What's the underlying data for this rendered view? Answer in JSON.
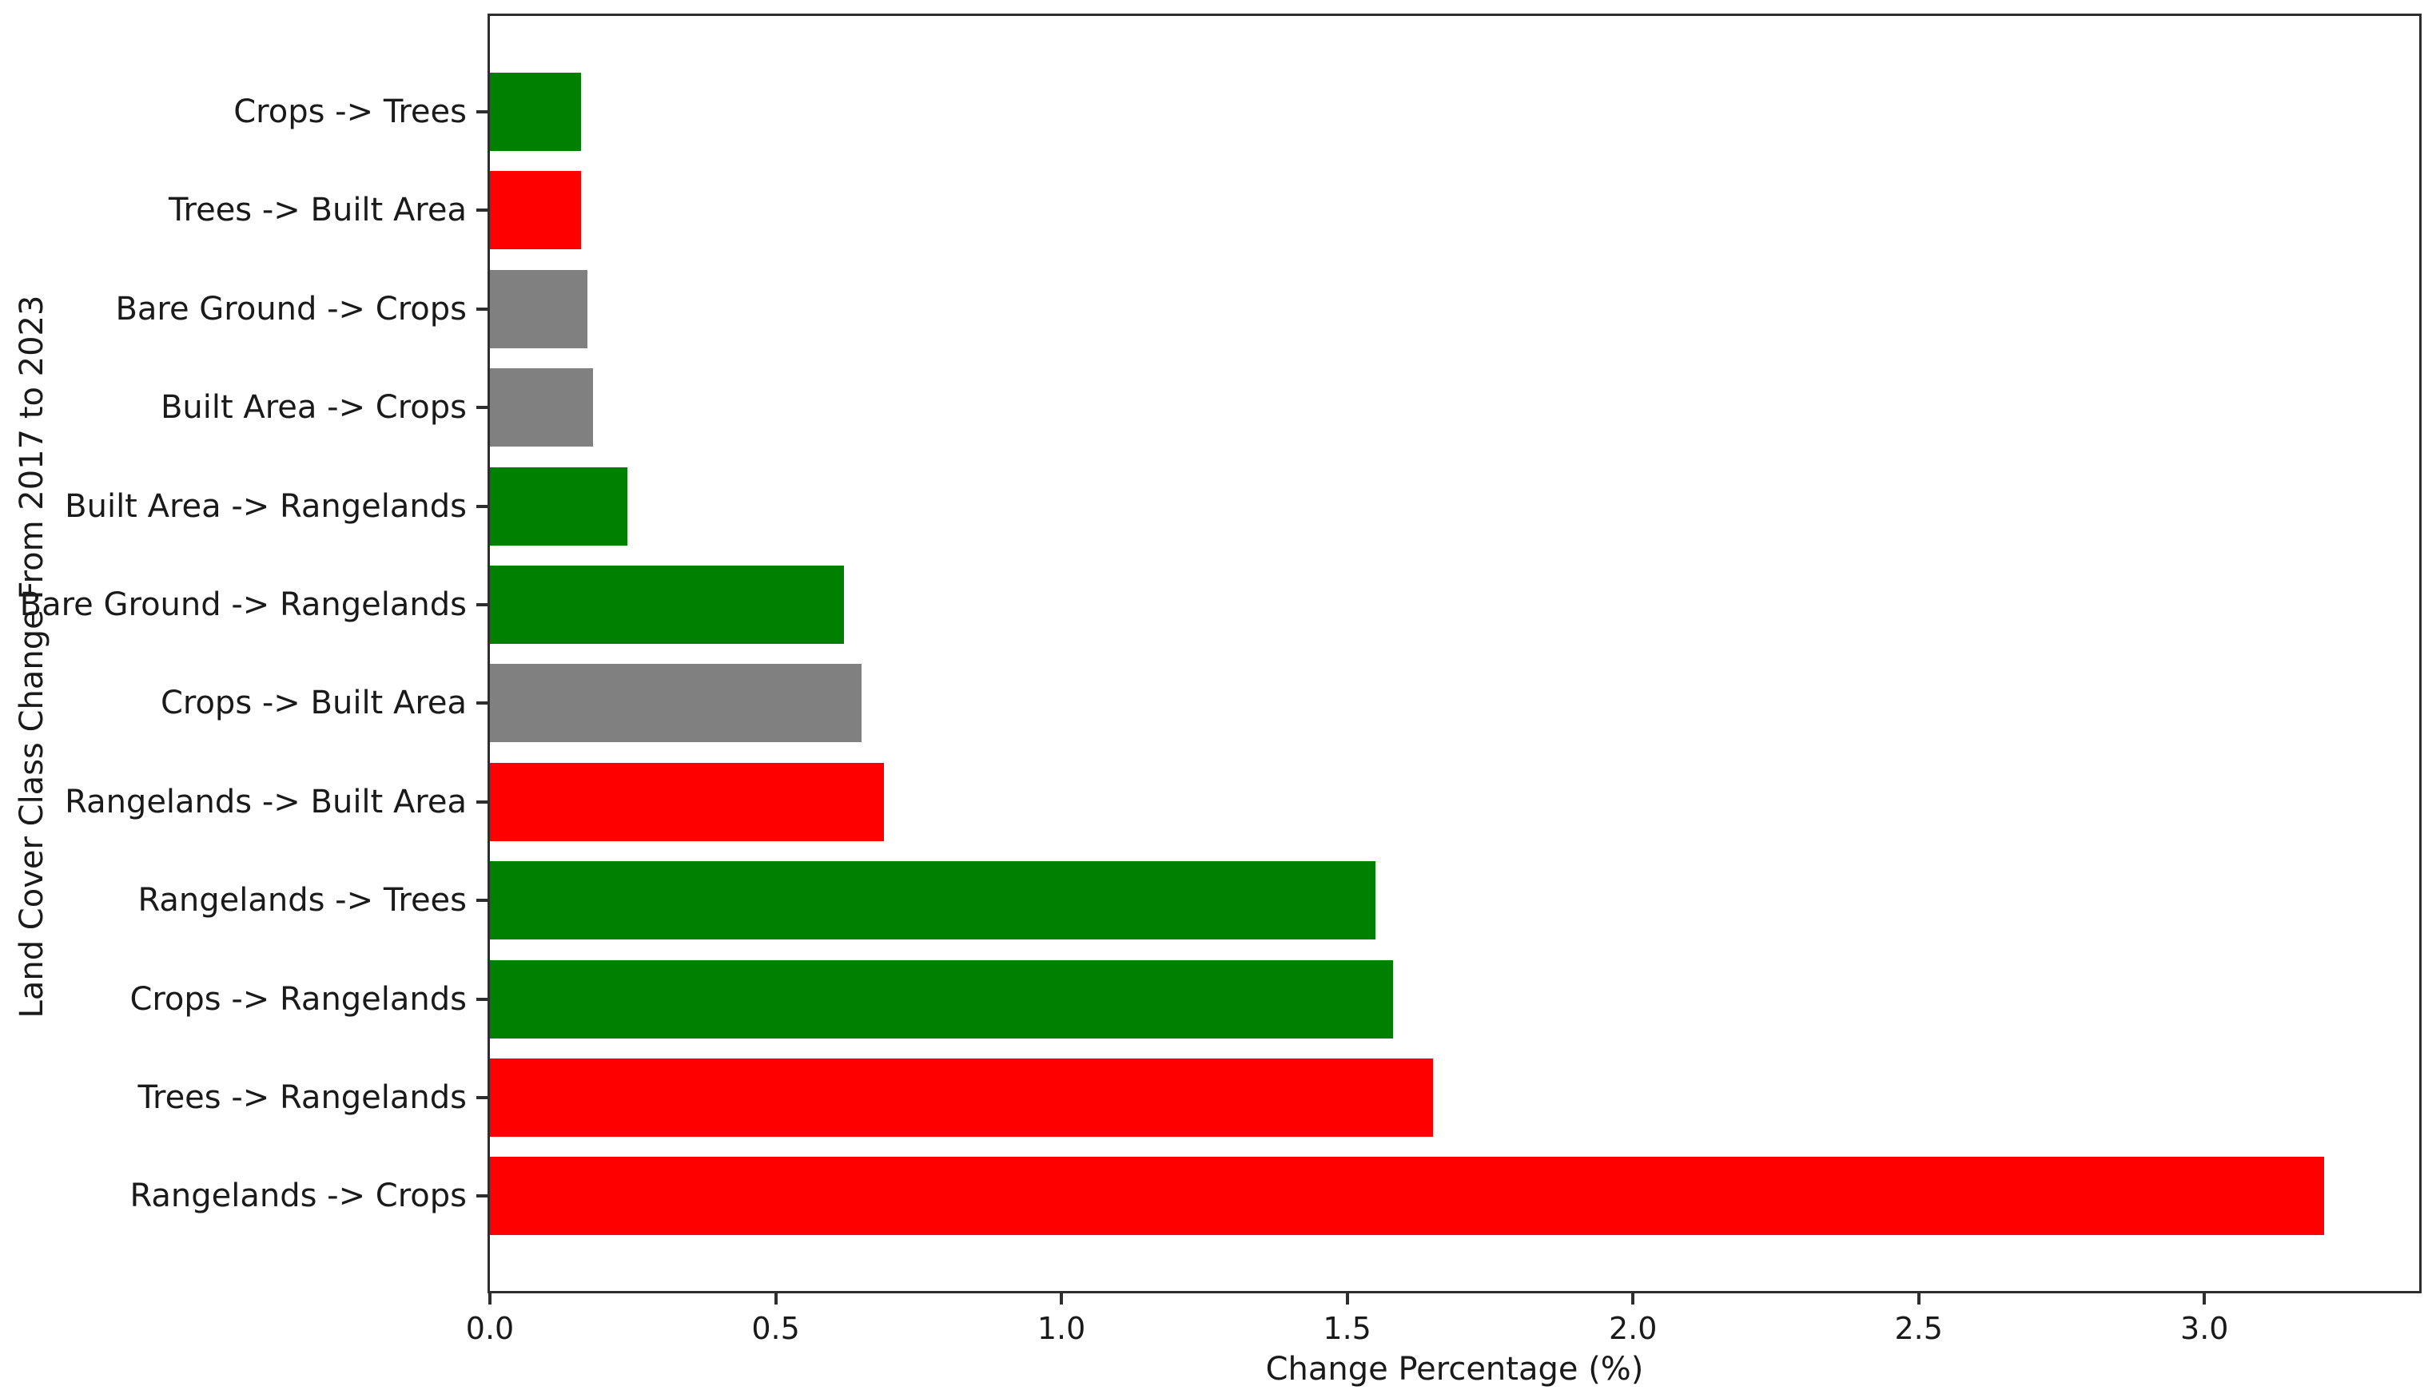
{
  "chart_data": {
    "type": "bar",
    "orientation": "horizontal",
    "title": "",
    "xlabel": "Change Percentage (%)",
    "ylabel": "Land Cover Class Change From 2017 to 2023",
    "xlim": [
      0,
      3.38
    ],
    "xticks": [
      0.0,
      0.5,
      1.0,
      1.5,
      2.0,
      2.5,
      3.0
    ],
    "grid": false,
    "legend": false,
    "bar_colors": {
      "green": "#008000",
      "red": "#ff0000",
      "gray": "#808080"
    },
    "bars": [
      {
        "label": "Crops -> Trees",
        "value": 0.16,
        "color": "green"
      },
      {
        "label": "Trees -> Built Area",
        "value": 0.16,
        "color": "red"
      },
      {
        "label": "Bare Ground -> Crops",
        "value": 0.17,
        "color": "gray"
      },
      {
        "label": "Built Area -> Crops",
        "value": 0.18,
        "color": "gray"
      },
      {
        "label": "Built Area -> Rangelands",
        "value": 0.24,
        "color": "green"
      },
      {
        "label": "Bare Ground -> Rangelands",
        "value": 0.62,
        "color": "green"
      },
      {
        "label": "Crops -> Built Area",
        "value": 0.65,
        "color": "gray"
      },
      {
        "label": "Rangelands -> Built Area",
        "value": 0.69,
        "color": "red"
      },
      {
        "label": "Rangelands -> Trees",
        "value": 1.55,
        "color": "green"
      },
      {
        "label": "Crops -> Rangelands",
        "value": 1.58,
        "color": "green"
      },
      {
        "label": "Trees -> Rangelands",
        "value": 1.65,
        "color": "red"
      },
      {
        "label": "Rangelands -> Crops",
        "value": 3.21,
        "color": "red"
      }
    ]
  }
}
